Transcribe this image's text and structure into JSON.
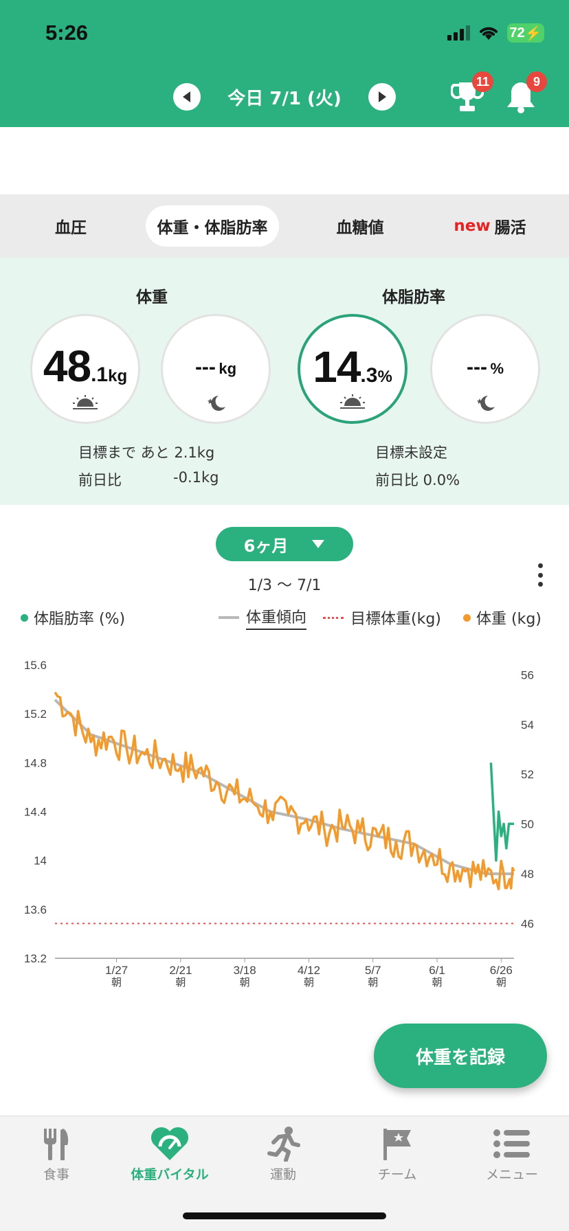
{
  "status": {
    "time": "5:26",
    "battery": "72"
  },
  "header": {
    "date_label": "今日 7/1 (火)",
    "trophy_badge": "11",
    "bell_badge": "9"
  },
  "tabs": [
    {
      "label": "血圧"
    },
    {
      "label": "体重・体脂肪率",
      "active": true
    },
    {
      "label": "血糖値"
    },
    {
      "new_tag": "new",
      "label": "腸活"
    }
  ],
  "weight": {
    "title": "体重",
    "morning_int": "48",
    "morning_dec": ".1",
    "unit": "kg",
    "night_value": "---",
    "goal_line": "目標まで あと  2.1kg",
    "prev_label": "前日比",
    "prev_value": "-0.1kg"
  },
  "body_fat": {
    "title": "体脂肪率",
    "morning_int": "14",
    "morning_dec": ".3",
    "unit": "%",
    "night_value": "---",
    "goal_line": "目標未設定",
    "prev_line": "前日比 0.0%"
  },
  "chart_controls": {
    "period": "6ヶ月",
    "range": "1/3 〜 7/1"
  },
  "legend": {
    "body_fat": "体脂肪率 (%)",
    "trend": "体重傾向",
    "target": "目標体重(kg)",
    "weight": "体重 (kg)"
  },
  "colors": {
    "brand": "#2bb07f",
    "weight_line": "#f39a2c",
    "trend_line": "#b8b8b8",
    "target_line": "#e85050",
    "body_fat_line": "#2bb07f"
  },
  "chart_data": {
    "type": "line",
    "y_left": {
      "label": "体脂肪率 (%)",
      "ticks": [
        "15.6",
        "15.2",
        "14.8",
        "14.4",
        "14",
        "13.6",
        "13.2"
      ],
      "ylim": [
        13.2,
        15.6
      ]
    },
    "y_right": {
      "label": "体重 (kg)",
      "ticks": [
        "56",
        "54",
        "52",
        "50",
        "48",
        "46"
      ],
      "ylim": [
        44.6,
        56.4
      ]
    },
    "x_ticks": [
      {
        "date": "1/27",
        "sub": "朝"
      },
      {
        "date": "2/21",
        "sub": "朝"
      },
      {
        "date": "3/18",
        "sub": "朝"
      },
      {
        "date": "4/12",
        "sub": "朝"
      },
      {
        "date": "5/7",
        "sub": "朝"
      },
      {
        "date": "6/1",
        "sub": "朝"
      },
      {
        "date": "6/26",
        "sub": "朝"
      }
    ],
    "target_weight": 46.0,
    "series": [
      {
        "name": "体重 (kg)",
        "x": [
          "1/3",
          "1/10",
          "1/17",
          "1/24",
          "1/31",
          "2/7",
          "2/14",
          "2/21",
          "2/28",
          "3/7",
          "3/14",
          "3/21",
          "3/28",
          "4/4",
          "4/11",
          "4/18",
          "4/25",
          "5/2",
          "5/9",
          "5/16",
          "5/23",
          "5/30",
          "6/6",
          "6/13",
          "6/20",
          "6/27",
          "7/1"
        ],
        "values": [
          55.3,
          54.3,
          53.3,
          53.5,
          53.0,
          52.8,
          52.6,
          52.3,
          52.2,
          51.7,
          51.2,
          50.9,
          50.5,
          50.4,
          50.2,
          49.8,
          49.9,
          49.7,
          49.5,
          49.3,
          49.2,
          48.8,
          48.3,
          48.2,
          47.9,
          48.0,
          48.1
        ]
      },
      {
        "name": "体重傾向",
        "x": [
          "1/3",
          "1/17",
          "1/31",
          "2/14",
          "2/28",
          "3/14",
          "3/28",
          "4/11",
          "4/25",
          "5/9",
          "5/23",
          "6/6",
          "6/20",
          "7/1"
        ],
        "values": [
          55.0,
          53.6,
          53.1,
          52.6,
          52.1,
          51.3,
          50.5,
          50.2,
          49.8,
          49.5,
          49.2,
          48.4,
          48.0,
          48.0
        ]
      },
      {
        "name": "体脂肪率 (%)",
        "x": [
          "6/22",
          "6/23",
          "6/24",
          "6/25",
          "6/26",
          "6/27",
          "6/28",
          "6/29",
          "6/30",
          "7/1"
        ],
        "values": [
          14.8,
          14.4,
          14.0,
          14.4,
          14.2,
          14.3,
          14.1,
          14.3,
          14.3,
          14.3
        ]
      }
    ]
  },
  "record_button": "体重を記録",
  "bottom_nav": [
    {
      "label": "食事"
    },
    {
      "label": "体重バイタル",
      "active": true
    },
    {
      "label": "運動"
    },
    {
      "label": "チーム"
    },
    {
      "label": "メニュー"
    }
  ]
}
